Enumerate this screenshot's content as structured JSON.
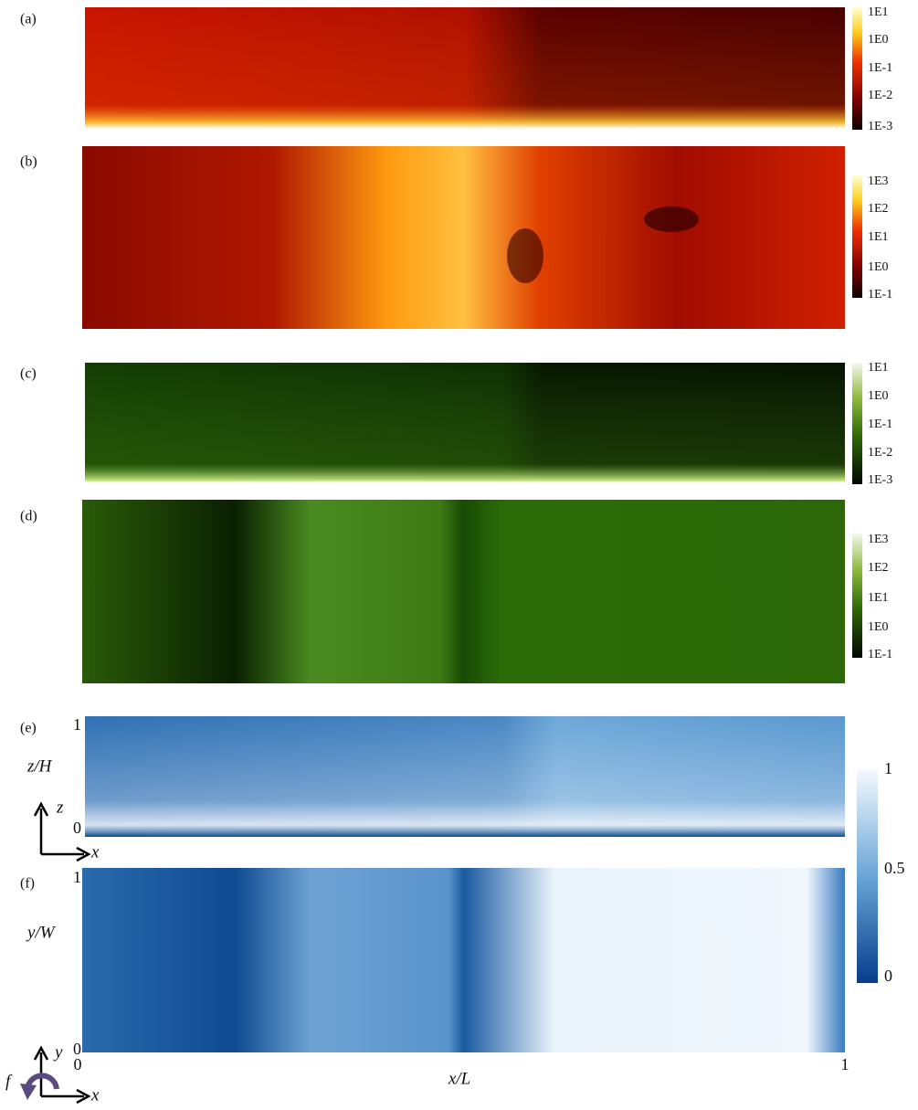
{
  "panels": [
    {
      "label": "(a)"
    },
    {
      "label": "(b)"
    },
    {
      "label": "(c)"
    },
    {
      "label": "(d)"
    },
    {
      "label": "(e)"
    },
    {
      "label": "(f)"
    }
  ],
  "colorbars": [
    {
      "ticks": [
        "1E1",
        "1E0",
        "1E-1",
        "1E-2",
        "1E-3"
      ]
    },
    {
      "ticks": [
        "1E3",
        "1E2",
        "1E1",
        "1E0",
        "1E-1"
      ]
    },
    {
      "ticks": [
        "1E1",
        "1E0",
        "1E-1",
        "1E-2",
        "1E-3"
      ]
    },
    {
      "ticks": [
        "1E3",
        "1E2",
        "1E1",
        "1E0",
        "1E-1"
      ]
    },
    {
      "ticks": [
        "1",
        "0.5",
        "0"
      ]
    }
  ],
  "axes": {
    "e": {
      "y_label": "z/H",
      "y_top": "1",
      "y_bottom": "0"
    },
    "f": {
      "y_label": "y/W",
      "y_top": "1",
      "y_bottom": "0"
    },
    "x_label": "x/L",
    "x_left": "0",
    "x_right": "1"
  },
  "icons": {
    "e": {
      "vertical": "z",
      "horizontal": "x"
    },
    "f": {
      "vertical": "y",
      "horizontal": "x",
      "rotation": "f"
    }
  }
}
